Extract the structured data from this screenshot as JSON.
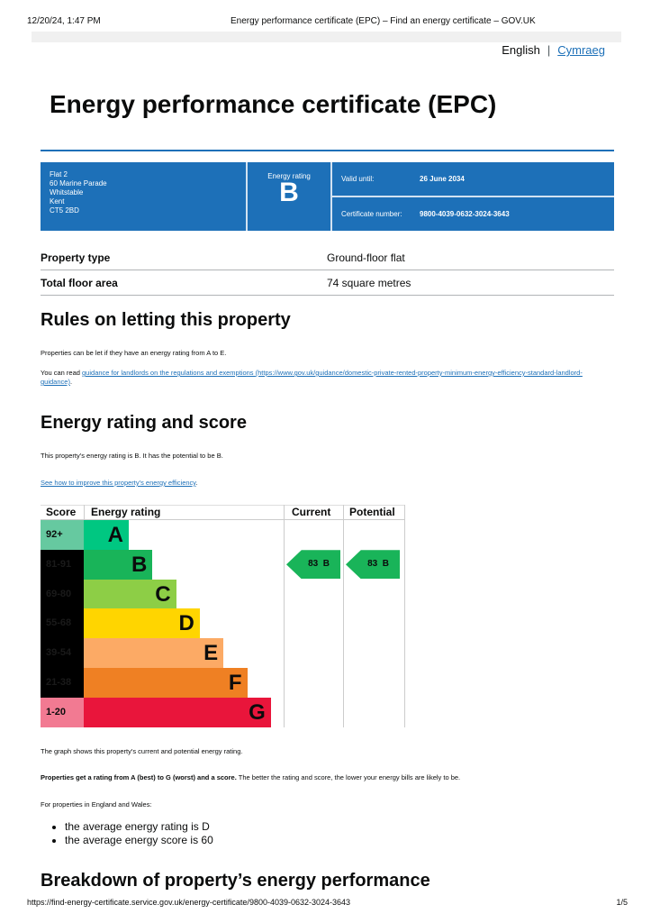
{
  "print_header": {
    "datetime": "12/20/24, 1:47 PM",
    "title": "Energy performance certificate (EPC) – Find an energy certificate – GOV.UK"
  },
  "language": {
    "current": "English",
    "other": "Cymraeg"
  },
  "page_title": "Energy performance certificate (EPC)",
  "certificate": {
    "address": [
      "Flat 2",
      "60 Marine Parade",
      "Whitstable",
      "Kent",
      "CT5 2BD"
    ],
    "energy_rating_label": "Energy rating",
    "energy_rating": "B",
    "valid_until_label": "Valid until:",
    "valid_until": "26 June 2034",
    "certificate_number_label": "Certificate number:",
    "certificate_number": "9800-4039-0632-3024-3643",
    "color": "#1d70b8"
  },
  "summary": [
    {
      "label": "Property type",
      "value": "Ground-floor flat"
    },
    {
      "label": "Total floor area",
      "value": "74 square metres"
    }
  ],
  "rules": {
    "heading": "Rules on letting this property",
    "text": "Properties can be let if they have an energy rating from A to E.",
    "read_prefix": "You can read ",
    "link": "guidance for landlords on the regulations and exemptions (https://www.gov.uk/guidance/domestic-private-rented-property-minimum-energy-efficiency-standard-landlord-guidance)",
    "suffix": "."
  },
  "rating_section": {
    "heading": "Energy rating and score",
    "text": "This property's energy rating is B. It has the potential to be B.",
    "link": "See how to improve this property's energy efficiency",
    "link_suffix": "."
  },
  "chart_data": {
    "type": "table",
    "headers": [
      "Score",
      "Energy rating",
      "Current",
      "Potential"
    ],
    "bands": [
      {
        "score": "92+",
        "letter": "A",
        "color": "#00c781",
        "score_bg": "#66c9a0"
      },
      {
        "score": "81-91",
        "letter": "B",
        "color": "#19b459",
        "score_bg": "#000000"
      },
      {
        "score": "69-80",
        "letter": "C",
        "color": "#8dce46",
        "score_bg": "#000000"
      },
      {
        "score": "55-68",
        "letter": "D",
        "color": "#ffd500",
        "score_bg": "#000000"
      },
      {
        "score": "39-54",
        "letter": "E",
        "color": "#fcaa65",
        "score_bg": "#000000"
      },
      {
        "score": "21-38",
        "letter": "F",
        "color": "#ef8023",
        "score_bg": "#000000"
      },
      {
        "score": "1-20",
        "letter": "G",
        "color": "#e9153b",
        "score_bg": "#f27a92"
      }
    ],
    "current": {
      "score": 83,
      "letter": "B",
      "label": "83  B"
    },
    "potential": {
      "score": 83,
      "letter": "B",
      "label": "83  B"
    }
  },
  "after_chart": {
    "graph_note": "The graph shows this property's current and potential energy rating.",
    "bold": "Properties get a rating from A (best) to G (worst) and a score.",
    "rest": " The better the rating and score, the lower your energy bills are likely to be.",
    "england_wales": "For properties in England and Wales:",
    "bullets": [
      "the average energy rating is D",
      "the average energy score is 60"
    ]
  },
  "breakdown_heading": "Breakdown of property’s energy performance",
  "print_footer": {
    "url": "https://find-energy-certificate.service.gov.uk/energy-certificate/9800-4039-0632-3024-3643",
    "page": "1/5"
  }
}
